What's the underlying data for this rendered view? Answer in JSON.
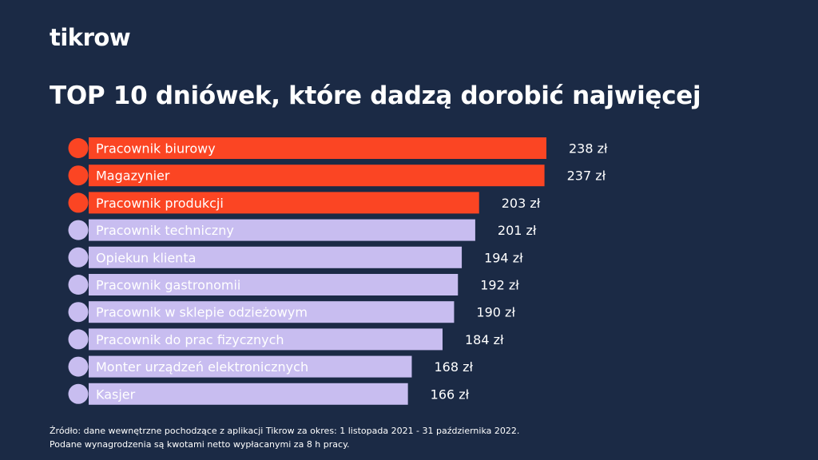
{
  "brand": {
    "logo_text": "tikrow"
  },
  "chart_data": {
    "type": "bar",
    "orientation": "horizontal",
    "title": "TOP 10 dniówek, które dadzą dorobić najwięcej",
    "categories": [
      "Pracownik biurowy",
      "Magazynier",
      "Pracownik produkcji",
      "Pracownik techniczny",
      "Opiekun klienta",
      "Pracownik gastronomii",
      "Pracownik w sklepie odzieżowym",
      "Pracownik do prac fizycznych",
      "Monter urządzeń elektronicznych",
      "Kasjer"
    ],
    "values": [
      238,
      237,
      203,
      201,
      194,
      192,
      190,
      184,
      168,
      166
    ],
    "value_labels": [
      "238 zł",
      "237 zł",
      "203 zł",
      "201 zł",
      "194 zł",
      "192 zł",
      "190 zł",
      "184 zł",
      "168 zł",
      "166 zł"
    ],
    "highlight_top_n": 3,
    "colors": {
      "highlight": "#fb4523",
      "default": "#c8bdf0",
      "highlight_text": "#ffffff",
      "default_text": "#ffffff",
      "background": "#1b2a45"
    }
  },
  "footer": {
    "line1": "Źródło: dane wewnętrzne pochodzące z aplikacji Tikrow za okres: 1 listopada 2021 - 31 października 2022.",
    "line2": "Podane wynagrodzenia są kwotami netto wypłacanymi za 8 h pracy."
  }
}
